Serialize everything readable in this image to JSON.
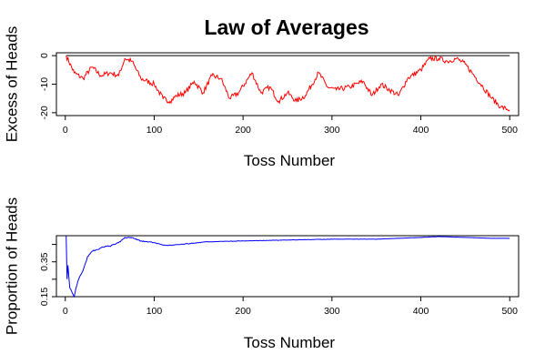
{
  "title": "Law of Averages",
  "chart_data": [
    {
      "type": "line",
      "xlabel": "Toss Number",
      "ylabel": "Excess of Heads",
      "xlim": [
        -10,
        510
      ],
      "ylim": [
        -21,
        1
      ],
      "xticks": [
        0,
        100,
        200,
        300,
        400,
        500
      ],
      "yticks": [
        0,
        -10,
        -20
      ],
      "reference_line": 0,
      "series": [
        {
          "color": "#ff0000",
          "x": [
            1,
            10,
            20,
            30,
            40,
            50,
            60,
            67,
            75,
            85,
            100,
            110,
            118,
            125,
            135,
            145,
            155,
            165,
            175,
            185,
            195,
            210,
            220,
            230,
            240,
            250,
            260,
            270,
            285,
            295,
            305,
            320,
            335,
            345,
            355,
            365,
            375,
            385,
            400,
            410,
            420,
            430,
            440,
            450,
            460,
            470,
            480,
            490,
            500
          ],
          "y": [
            0,
            -6,
            -8,
            -4,
            -7,
            -6,
            -7,
            -1,
            -2,
            -8,
            -10,
            -15,
            -16,
            -14,
            -13,
            -9,
            -13,
            -7,
            -8,
            -15,
            -13,
            -6,
            -13,
            -11,
            -16,
            -13,
            -16,
            -14,
            -6,
            -11,
            -12,
            -11,
            -9,
            -14,
            -10,
            -12,
            -14,
            -8,
            -5,
            -1,
            -1,
            -2,
            -1,
            -3,
            -7,
            -11,
            -15,
            -18,
            -19
          ]
        }
      ]
    },
    {
      "type": "line",
      "xlabel": "Toss Number",
      "ylabel": "Proportion of Heads",
      "xlim": [
        -10,
        510
      ],
      "ylim": [
        0.15,
        0.5
      ],
      "xticks": [
        0,
        100,
        200,
        300,
        400,
        500
      ],
      "yticks": [
        0.15,
        0.25,
        0.35,
        0.45
      ],
      "ytick_labels": [
        "0.15",
        "",
        "0.35",
        ""
      ],
      "reference_line": 0.5,
      "series": [
        {
          "color": "#0000ff",
          "x": [
            1,
            2,
            3,
            5,
            8,
            10,
            12,
            15,
            20,
            25,
            30,
            35,
            40,
            50,
            60,
            67,
            75,
            85,
            100,
            110,
            120,
            140,
            160,
            200,
            250,
            300,
            350,
            400,
            420,
            450,
            480,
            500
          ],
          "y": [
            0.5,
            0.25,
            0.33,
            0.2,
            0.17,
            0.15,
            0.2,
            0.25,
            0.3,
            0.38,
            0.41,
            0.42,
            0.43,
            0.44,
            0.46,
            0.49,
            0.49,
            0.47,
            0.46,
            0.445,
            0.445,
            0.455,
            0.465,
            0.47,
            0.475,
            0.48,
            0.48,
            0.49,
            0.495,
            0.49,
            0.485,
            0.485
          ]
        }
      ]
    }
  ]
}
